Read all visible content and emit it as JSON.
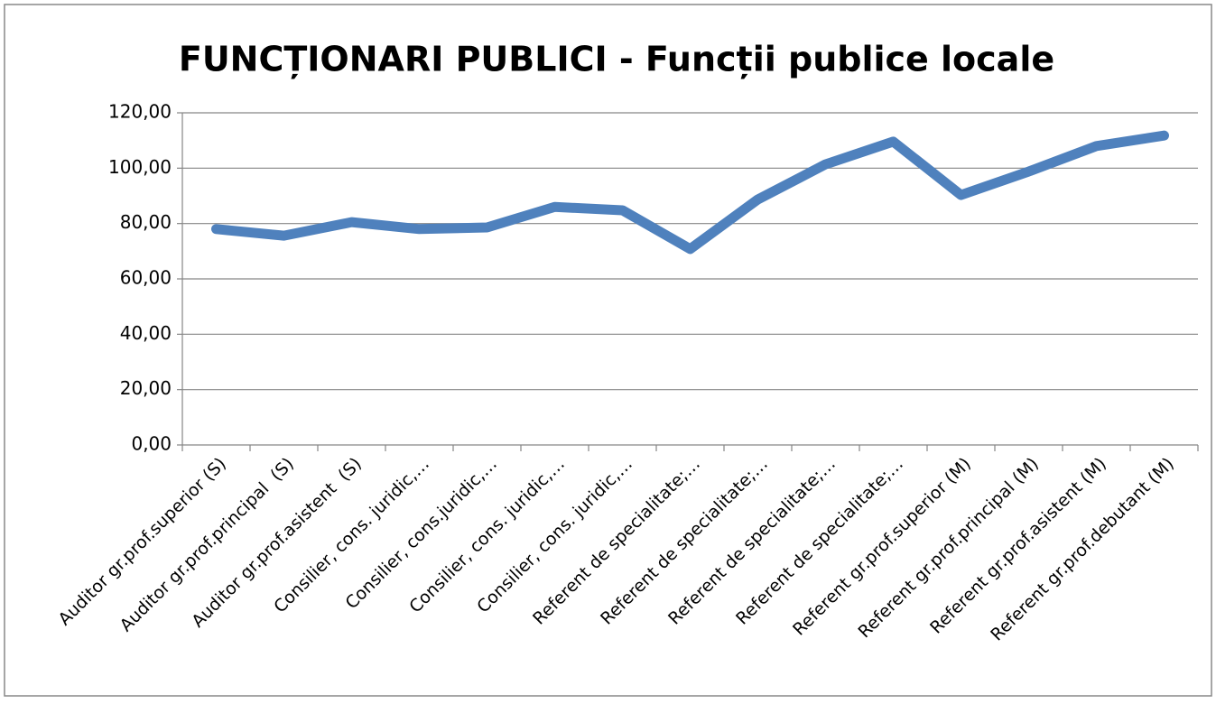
{
  "chart_data": {
    "type": "line",
    "title": "FUNCȚIONARI PUBLICI - Funcții publice locale",
    "categories": [
      "Auditor gr.prof.superior (S)",
      "Auditor gr.prof.principal  (S)",
      "Auditor gr.prof.asistent  (S)",
      "Consilier, cons. juridic,…",
      "Consilier, cons.juridic,…",
      "Consilier, cons. juridic,…",
      "Consilier, cons. juridic,…",
      "Referent de specialitate;…",
      "Referent de specialitate;…",
      "Referent de specialitate;…",
      "Referent de specialitate;…",
      "Referent gr.prof.superior (M)",
      "Referent gr.prof.principal (M)",
      "Referent gr.prof.asistent (M)",
      "Referent gr.prof.debutant (M)"
    ],
    "series": [
      {
        "color": "#4f81bd",
        "values": [
          78,
          75.6,
          80.5,
          78,
          78.6,
          86,
          84.8,
          70.8,
          88.7,
          101.4,
          109.6,
          90.3,
          98.8,
          108,
          111.8
        ]
      }
    ],
    "ylim": [
      0,
      120
    ],
    "yticks": [
      {
        "value": 0,
        "label": "0,00"
      },
      {
        "value": 20,
        "label": "20,00"
      },
      {
        "value": 40,
        "label": "40,00"
      },
      {
        "value": 60,
        "label": "60,00"
      },
      {
        "value": 80,
        "label": "80,00"
      },
      {
        "value": 100,
        "label": "100,00"
      },
      {
        "value": 120,
        "label": "120,00"
      }
    ],
    "grid": true
  }
}
